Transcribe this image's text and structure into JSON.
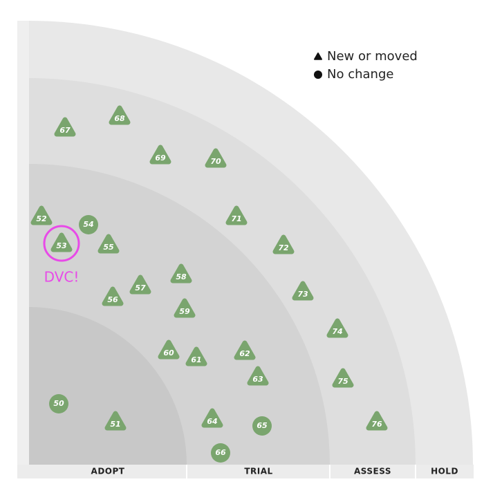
{
  "legend": [
    {
      "shape": "triangle",
      "label": "New or moved"
    },
    {
      "shape": "circle",
      "label": "No change"
    }
  ],
  "rings": [
    "ADOPT",
    "TRIAL",
    "ASSESS",
    "HOLD"
  ],
  "blip_color": "#7aa56e",
  "blips": [
    {
      "label": "50",
      "shape": "circle"
    },
    {
      "label": "51",
      "shape": "triangle"
    },
    {
      "label": "52",
      "shape": "triangle"
    },
    {
      "label": "53",
      "shape": "triangle"
    },
    {
      "label": "54",
      "shape": "circle"
    },
    {
      "label": "55",
      "shape": "triangle"
    },
    {
      "label": "56",
      "shape": "triangle"
    },
    {
      "label": "57",
      "shape": "triangle"
    },
    {
      "label": "58",
      "shape": "triangle"
    },
    {
      "label": "59",
      "shape": "triangle"
    },
    {
      "label": "60",
      "shape": "triangle"
    },
    {
      "label": "61",
      "shape": "triangle"
    },
    {
      "label": "62",
      "shape": "triangle"
    },
    {
      "label": "63",
      "shape": "triangle"
    },
    {
      "label": "64",
      "shape": "triangle"
    },
    {
      "label": "65",
      "shape": "circle"
    },
    {
      "label": "66",
      "shape": "circle"
    },
    {
      "label": "67",
      "shape": "triangle"
    },
    {
      "label": "68",
      "shape": "triangle"
    },
    {
      "label": "69",
      "shape": "triangle"
    },
    {
      "label": "70",
      "shape": "triangle"
    },
    {
      "label": "71",
      "shape": "triangle"
    },
    {
      "label": "72",
      "shape": "triangle"
    },
    {
      "label": "73",
      "shape": "triangle"
    },
    {
      "label": "74",
      "shape": "triangle"
    },
    {
      "label": "75",
      "shape": "triangle"
    },
    {
      "label": "76",
      "shape": "triangle"
    }
  ],
  "annotation": "DVC!"
}
